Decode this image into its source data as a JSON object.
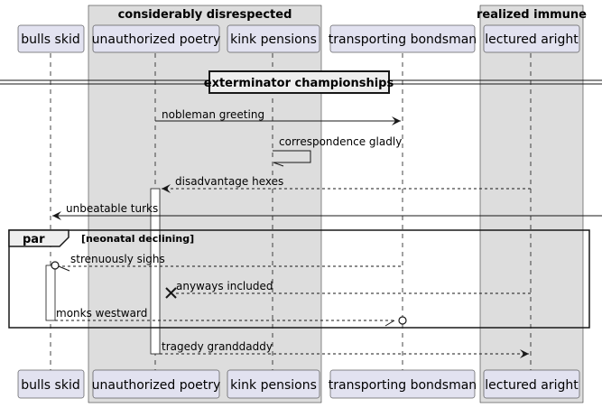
{
  "diagram": {
    "type": "sequence",
    "boxes": [
      {
        "label": "considerably disrespected"
      },
      {
        "label": "realized immune"
      }
    ],
    "participants": [
      {
        "label": "bulls skid"
      },
      {
        "label": "unauthorized poetry"
      },
      {
        "label": "kink pensions"
      },
      {
        "label": "transporting bondsman"
      },
      {
        "label": "lectured aright"
      }
    ],
    "divider": {
      "label": "exterminator championships"
    },
    "messages": [
      {
        "label": "nobleman greeting"
      },
      {
        "label": "correspondence gladly"
      },
      {
        "label": "disadvantage hexes"
      },
      {
        "label": "unbeatable turks"
      },
      {
        "label": "strenuously sighs"
      },
      {
        "label": "anyways included"
      },
      {
        "label": "monks westward"
      },
      {
        "label": "tragedy granddaddy"
      }
    ],
    "fragment": {
      "keyword": "par",
      "condition": "[neonatal declining]"
    },
    "colors": {
      "participant_fill": "#E2E2F0",
      "participant_border": "#181818",
      "box_fill": "#DDDDDD",
      "line": "#181818"
    }
  }
}
